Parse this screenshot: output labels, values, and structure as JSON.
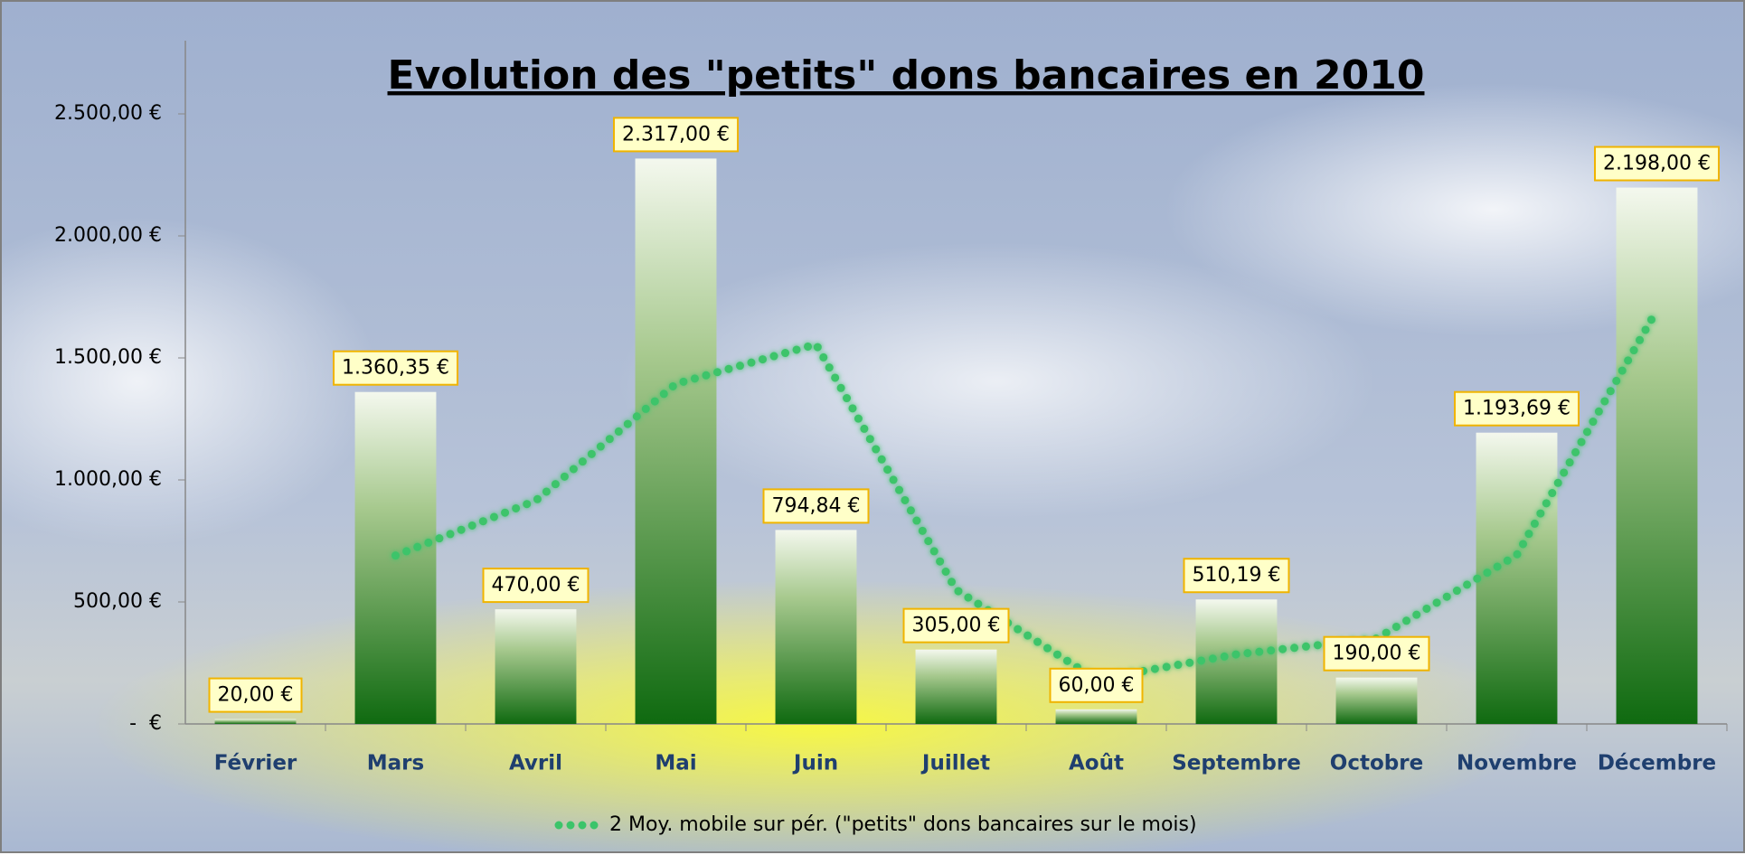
{
  "chart_data": {
    "type": "bar",
    "title": "Evolution des \"petits\" dons bancaires en 2010",
    "categories": [
      "Février",
      "Mars",
      "Avril",
      "Mai",
      "Juin",
      "Juillet",
      "Août",
      "Septembre",
      "Octobre",
      "Novembre",
      "Décembre"
    ],
    "values": [
      20,
      1360.35,
      470,
      2317,
      794.84,
      305,
      60,
      510.19,
      190,
      1193.69,
      2198
    ],
    "value_labels": [
      "20,00 €",
      "1.360,35 €",
      "470,00 €",
      "2.317,00 €",
      "794,84 €",
      "305,00 €",
      "60,00 €",
      "510,19 €",
      "190,00 €",
      "1.193,69 €",
      "2.198,00 €"
    ],
    "color": "#1e7a1e",
    "series": [
      {
        "name": "2 Moy. mobile sur pér. (\"petits\" dons bancaires sur le mois)",
        "type": "line",
        "color": "#3cc46a",
        "values": [
          null,
          690.18,
          915.18,
          1393.5,
          1555.92,
          549.92,
          182.5,
          285.1,
          350.1,
          691.85,
          1695.85
        ]
      }
    ],
    "ylim": [
      0,
      2800
    ],
    "yticks": [
      {
        "value": 0,
        "label": "-  €"
      },
      {
        "value": 500,
        "label": "500,00 €"
      },
      {
        "value": 1000,
        "label": "1.000,00 €"
      },
      {
        "value": 1500,
        "label": "1.500,00 €"
      },
      {
        "value": 2000,
        "label": "2.000,00 €"
      },
      {
        "value": 2500,
        "label": "2.500,00 €"
      }
    ]
  }
}
